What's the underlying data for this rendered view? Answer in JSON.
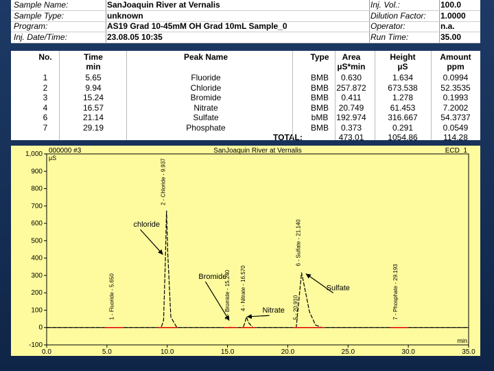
{
  "sample_info": {
    "rows": [
      {
        "label": "Sample Name:",
        "value": "SanJoaquin River at Vernalis",
        "label2": "Inj. Vol.:",
        "value2": "100.0"
      },
      {
        "label": "Sample Type:",
        "value": "unknown",
        "label2": "Dilution Factor:",
        "value2": "1.0000"
      },
      {
        "label": "Program:",
        "value": "AS19 Grad 10-45mM OH Grad 10mL Sample_0",
        "label2": "Operator:",
        "value2": "n.a."
      },
      {
        "label": "Inj. Date/Time:",
        "value": "23.08.05   10:35",
        "label2": "Run Time:",
        "value2": "35.00"
      }
    ]
  },
  "peak_table": {
    "headers": [
      "No.",
      "Time",
      "Peak Name",
      "Type",
      "Area",
      "Height",
      "Amount"
    ],
    "units": [
      "",
      "min",
      "",
      "",
      "µS*min",
      "µS",
      "ppm"
    ],
    "rows": [
      {
        "no": "1",
        "time": "5.65",
        "name": "Fluoride",
        "type": "BMB",
        "area": "0.630",
        "height": "1.634",
        "amount": "0.0994"
      },
      {
        "no": "2",
        "time": "9.94",
        "name": "Chloride",
        "type": "BMB",
        "area": "257.872",
        "height": "673.538",
        "amount": "52.3535"
      },
      {
        "no": "3",
        "time": "15.24",
        "name": "Bromide",
        "type": "BMB",
        "area": "0.411",
        "height": "1.278",
        "amount": "0.1993"
      },
      {
        "no": "4",
        "time": "16.57",
        "name": "Nitrate",
        "type": "BMB",
        "area": "20.749",
        "height": "61.453",
        "amount": "7.2002"
      },
      {
        "no": "6",
        "time": "21.14",
        "name": "Sulfate",
        "type": "bMB",
        "area": "192.974",
        "height": "316.667",
        "amount": "54.3737"
      },
      {
        "no": "7",
        "time": "29.19",
        "name": "Phosphate",
        "type": "BMB",
        "area": "0.373",
        "height": "0.291",
        "amount": "0.0549"
      }
    ],
    "total_label": "TOTAL:",
    "total_area": "473.01",
    "total_height": "1054.86",
    "total_amount": "114.28"
  },
  "chart_data": {
    "type": "line",
    "title": "SanJoaquin River at Vernalis",
    "header_left": "000000 #3",
    "header_right": "ECD_1",
    "y_unit": "µS",
    "x_unit": "min",
    "xlim": [
      0,
      35
    ],
    "ylim": [
      -100,
      1000
    ],
    "x_ticks": [
      "0.0",
      "5.0",
      "10.0",
      "15.0",
      "20.0",
      "25.0",
      "30.0",
      "35.0"
    ],
    "y_ticks": [
      "-100",
      "0",
      "100",
      "200",
      "300",
      "400",
      "500",
      "600",
      "700",
      "800",
      "900",
      "1,000"
    ],
    "series": [
      {
        "values": [
          [
            0,
            0
          ],
          [
            9.5,
            0
          ],
          [
            9.7,
            40
          ],
          [
            9.85,
            400
          ],
          [
            9.94,
            673.5
          ],
          [
            10.05,
            420
          ],
          [
            10.3,
            60
          ],
          [
            10.8,
            0
          ],
          [
            15.0,
            0
          ],
          [
            15.24,
            1.3
          ],
          [
            15.5,
            0
          ],
          [
            16.3,
            0
          ],
          [
            16.45,
            30
          ],
          [
            16.57,
            61.5
          ],
          [
            16.75,
            28
          ],
          [
            17.1,
            0
          ],
          [
            20.7,
            0
          ],
          [
            20.9,
            140
          ],
          [
            21.14,
            316.7
          ],
          [
            21.4,
            230
          ],
          [
            21.8,
            90
          ],
          [
            22.3,
            15
          ],
          [
            22.8,
            0
          ],
          [
            35,
            0
          ]
        ]
      }
    ],
    "peak_labels": [
      {
        "text": "1 - Fluoride - 5.650",
        "x": 5.65
      },
      {
        "text": "2 - Chloride - 9.937",
        "x": 9.94
      },
      {
        "text": "3 - Bromide - 15.240",
        "x": 15.24
      },
      {
        "text": "4 - Nitrate - 16.570",
        "x": 16.57
      },
      {
        "text": "5 - 20.910",
        "x": 20.91
      },
      {
        "text": "6 - Sulfate - 21.140",
        "x": 21.14
      },
      {
        "text": "7 - Phosphate - 29.193",
        "x": 29.19
      }
    ],
    "annotations": [
      {
        "text": "chloride"
      },
      {
        "text": "Bromide"
      },
      {
        "text": "Nitrate"
      },
      {
        "text": "Sulfate"
      }
    ]
  }
}
